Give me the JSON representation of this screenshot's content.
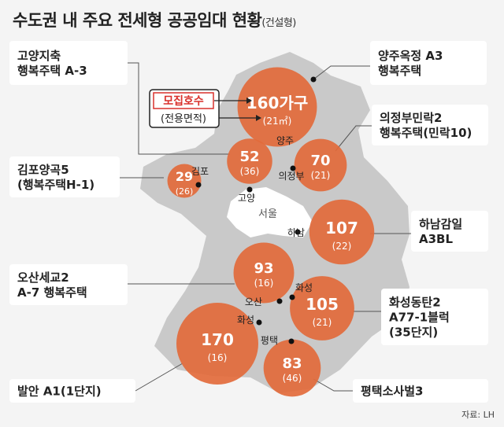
{
  "title": "수도권 내 주요 전세형 공공임대 현황",
  "subtitle": "(건설형)",
  "source": "자료: LH",
  "map_labels": {
    "seoul": "서울",
    "goyang": "고양",
    "gimpo": "김포",
    "yangju": "양주",
    "uijeongbu": "의정부",
    "hanam": "하남",
    "hwaseong_n": "화성",
    "osan": "오산",
    "hwaseong_s": "화성",
    "pyeongtaek": "평택"
  },
  "legend": {
    "box_label": "모집호수",
    "area_label": "(전용면적)"
  },
  "colors": {
    "bubble": "#e26a3b",
    "bubble_text": "#ffffff",
    "map": "#c9c9c9",
    "seoul": "#ffffff",
    "legend_border": "#d9302c",
    "legend_text": "#d9302c",
    "background": "#f4f4f4"
  },
  "chart_data": {
    "type": "bubble-map",
    "title": "수도권 내 주요 전세형 공공임대 현황",
    "size_measure": "모집호수",
    "unit": "가구",
    "area_unit": "㎡",
    "points": [
      {
        "name": "양주옥정 A3 행복주택",
        "label_lines": [
          "양주옥정 A3",
          "행복주택"
        ],
        "city": "양주",
        "units": 160,
        "units_text": "160가구",
        "area": 21,
        "area_text": "(21㎡)"
      },
      {
        "name": "고양지축 행복주택 A-3",
        "label_lines": [
          "고양지축",
          "행복주택 A-3"
        ],
        "city": "고양",
        "units": 52,
        "units_text": "52",
        "area": 36,
        "area_text": "(36)"
      },
      {
        "name": "의정부민락2 행복주택(민락10)",
        "label_lines": [
          "의정부민락2",
          "행복주택(민락10)"
        ],
        "city": "의정부",
        "units": 70,
        "units_text": "70",
        "area": 21,
        "area_text": "(21)"
      },
      {
        "name": "김포양곡5 (행복주택H-1)",
        "label_lines": [
          "김포양곡5",
          "(행복주택H-1)"
        ],
        "city": "김포",
        "units": 29,
        "units_text": "29",
        "area": 26,
        "area_text": "(26)"
      },
      {
        "name": "하남감일 A3BL",
        "label_lines": [
          "하남감일",
          "A3BL"
        ],
        "city": "하남",
        "units": 107,
        "units_text": "107",
        "area": 22,
        "area_text": "(22)"
      },
      {
        "name": "오산세교2 A-7 행복주택",
        "label_lines": [
          "오산세교2",
          "A-7 행복주택"
        ],
        "city": "오산",
        "units": 93,
        "units_text": "93",
        "area": 16,
        "area_text": "(16)"
      },
      {
        "name": "화성동탄2 A77-1블럭 (35단지)",
        "label_lines": [
          "화성동탄2",
          "A77-1블럭",
          "(35단지)"
        ],
        "city": "화성",
        "units": 105,
        "units_text": "105",
        "area": 21,
        "area_text": "(21)"
      },
      {
        "name": "발안 A1(1단지)",
        "label_lines": [
          "발안 A1(1단지)"
        ],
        "city": "화성",
        "units": 170,
        "units_text": "170",
        "area": 16,
        "area_text": "(16)"
      },
      {
        "name": "평택소사벌3",
        "label_lines": [
          "평택소사벌3"
        ],
        "city": "평택",
        "units": 83,
        "units_text": "83",
        "area": 46,
        "area_text": "(46)"
      }
    ]
  }
}
